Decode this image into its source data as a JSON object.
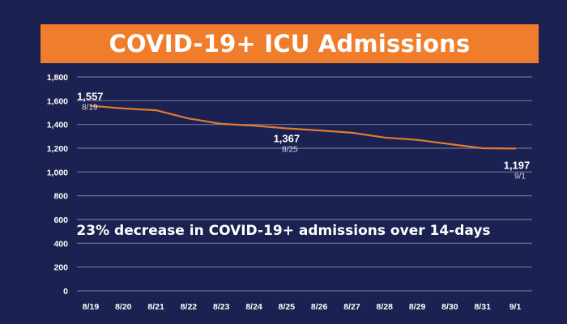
{
  "chart_data": {
    "type": "line",
    "title": "COVID-19+ ICU Admissions",
    "x": [
      "8/19",
      "8/20",
      "8/21",
      "8/22",
      "8/23",
      "8/24",
      "8/25",
      "8/26",
      "8/27",
      "8/28",
      "8/29",
      "8/30",
      "8/31",
      "9/1"
    ],
    "series": [
      {
        "values": [
          1557,
          1535,
          1520,
          1450,
          1405,
          1390,
          1367,
          1350,
          1330,
          1290,
          1270,
          1235,
          1200,
          1197
        ]
      }
    ],
    "ylim": [
      0,
      1800
    ],
    "yticks": [
      "0",
      "200",
      "400",
      "600",
      "800",
      "1,000",
      "1,200",
      "1,400",
      "1,600",
      "1,800"
    ],
    "grid": true,
    "line_color": "#e07b2e",
    "data_labels": [
      {
        "index": 0,
        "value": "1,557",
        "date": "8/19"
      },
      {
        "index": 6,
        "value": "1,367",
        "date": "8/25"
      },
      {
        "index": 13,
        "value": "1,197",
        "date": "9/1"
      }
    ],
    "annotation": "23% decrease in COVID-19+ admissions over 14-days"
  },
  "colors": {
    "background": "#1b2150",
    "banner": "#ef7d2b",
    "gridline": "#6f7598",
    "text": "#ffffff"
  }
}
